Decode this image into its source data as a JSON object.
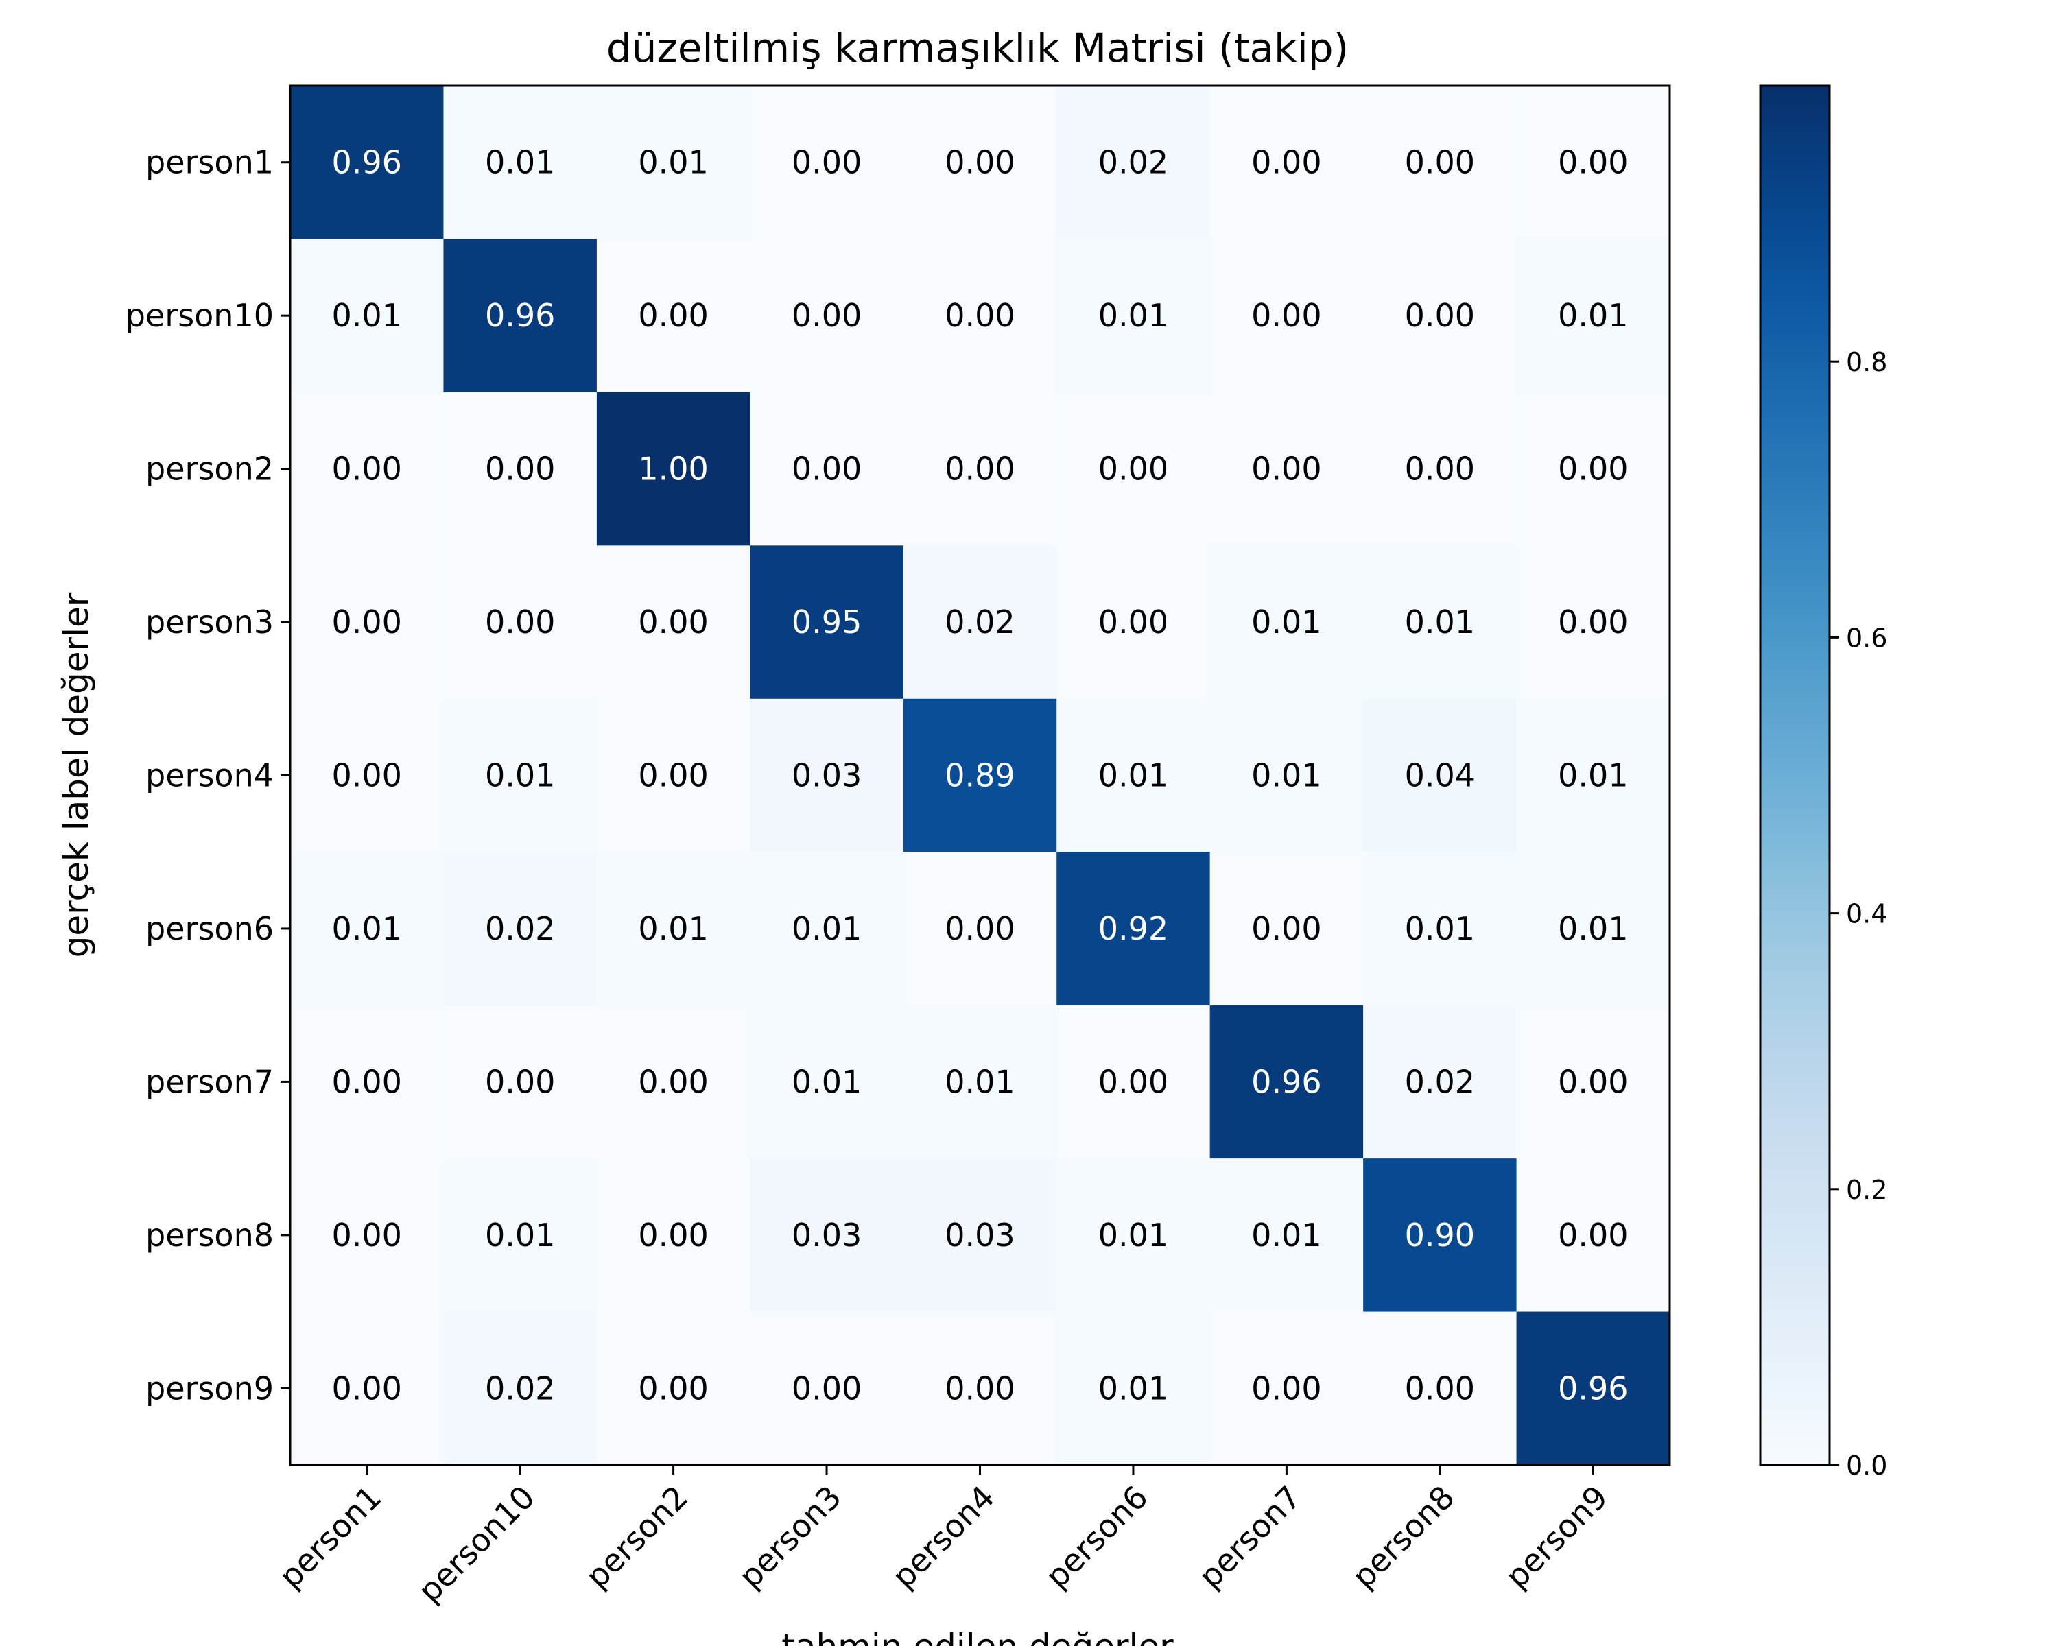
{
  "chart_data": {
    "type": "heatmap",
    "title": "düzeltilmiş karmaşıklık Matrisi (takip)",
    "xlabel": "tahmin edilen değerler",
    "ylabel": "gerçek label değerler",
    "x_categories": [
      "person1",
      "person10",
      "person2",
      "person3",
      "person4",
      "person6",
      "person7",
      "person8",
      "person9"
    ],
    "y_categories": [
      "person1",
      "person10",
      "person2",
      "person3",
      "person4",
      "person6",
      "person7",
      "person8",
      "person9"
    ],
    "values": [
      [
        0.96,
        0.01,
        0.01,
        0.0,
        0.0,
        0.02,
        0.0,
        0.0,
        0.0
      ],
      [
        0.01,
        0.96,
        0.0,
        0.0,
        0.0,
        0.01,
        0.0,
        0.0,
        0.01
      ],
      [
        0.0,
        0.0,
        1.0,
        0.0,
        0.0,
        0.0,
        0.0,
        0.0,
        0.0
      ],
      [
        0.0,
        0.0,
        0.0,
        0.95,
        0.02,
        0.0,
        0.01,
        0.01,
        0.0
      ],
      [
        0.0,
        0.01,
        0.0,
        0.03,
        0.89,
        0.01,
        0.01,
        0.04,
        0.01
      ],
      [
        0.01,
        0.02,
        0.01,
        0.01,
        0.0,
        0.92,
        0.0,
        0.01,
        0.01
      ],
      [
        0.0,
        0.0,
        0.0,
        0.01,
        0.01,
        0.0,
        0.96,
        0.02,
        0.0
      ],
      [
        0.0,
        0.01,
        0.0,
        0.03,
        0.03,
        0.01,
        0.01,
        0.9,
        0.0
      ],
      [
        0.0,
        0.02,
        0.0,
        0.0,
        0.0,
        0.01,
        0.0,
        0.0,
        0.96
      ]
    ],
    "value_format": "0.00",
    "colormap": "Blues",
    "colorbar": {
      "range": [
        0.0,
        1.0
      ],
      "ticks": [
        "0.0",
        "0.2",
        "0.4",
        "0.6",
        "0.8"
      ],
      "tick_values": [
        0.0,
        0.2,
        0.4,
        0.6,
        0.8
      ]
    },
    "colors": {
      "low": "#f7fbff",
      "high": "#08306b",
      "text_dark": "#000000",
      "text_light": "#ffffff"
    }
  }
}
